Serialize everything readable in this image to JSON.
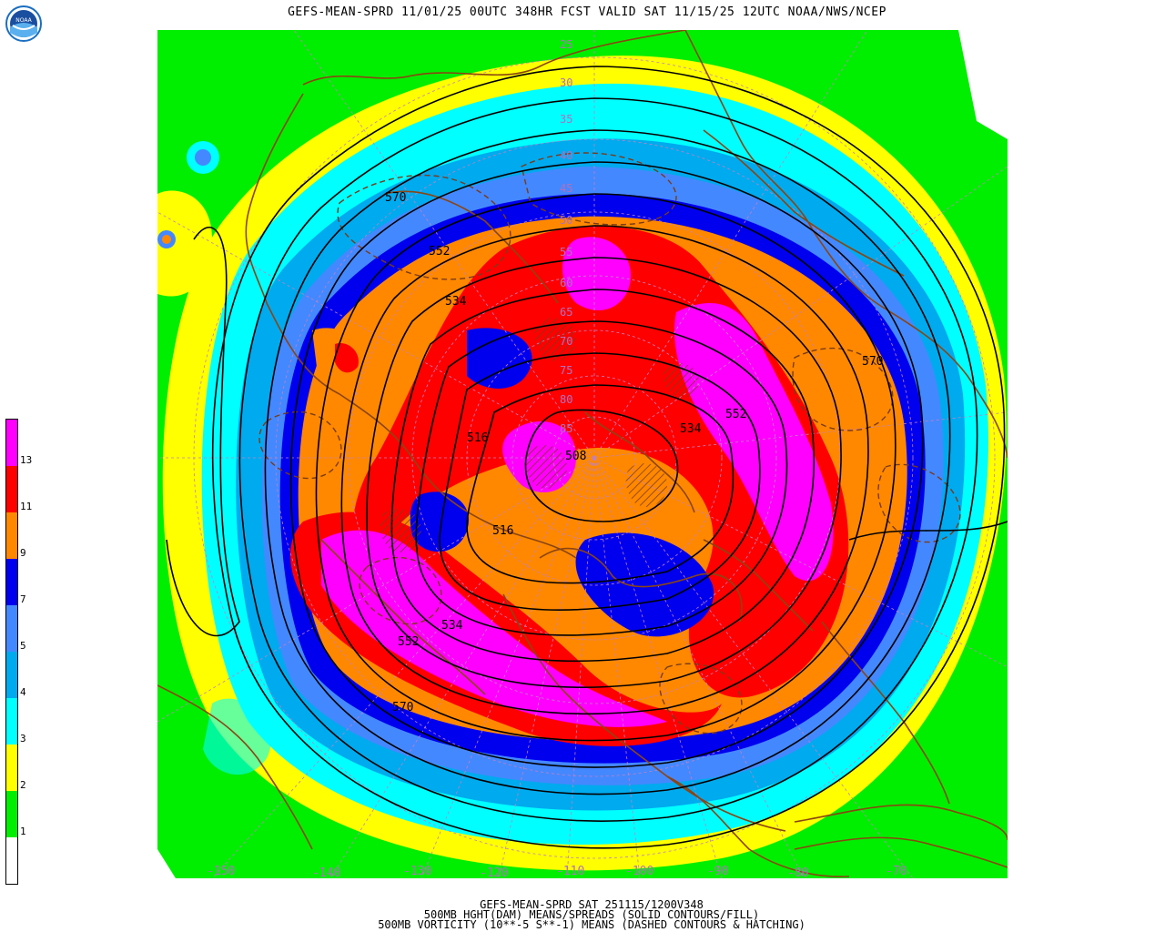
{
  "header": {
    "title": "GEFS-MEAN-SPRD 11/01/25 00UTC 348HR FCST VALID SAT 11/15/25 12UTC NOAA/NWS/NCEP"
  },
  "logo": {
    "icon": "noaa-logo-icon",
    "text": "NOAA"
  },
  "footer": {
    "line1": "GEFS-MEAN-SPRD SAT 251115/1200V348",
    "line2": "500MB HGHT(DAM) MEANS/SPREADS (SOLID CONTOURS/FILL)",
    "line3": "500MB VORTICITY (10**-5 S**-1) MEANS (DASHED CONTOURS & HATCHING)"
  },
  "colorbar": {
    "labels": [
      "1",
      "2",
      "3",
      "4",
      "5",
      "7",
      "9",
      "11",
      "13"
    ],
    "colors": [
      "#ffffff",
      "#00ee00",
      "#ffff00",
      "#00ffff",
      "#00aaee",
      "#4488ff",
      "#0000ee",
      "#ff8800",
      "#ff0000",
      "#ff00ff"
    ]
  },
  "map": {
    "contour_labels": [
      "570",
      "552",
      "534",
      "516",
      "534",
      "552",
      "570",
      "534",
      "552",
      "570",
      "516",
      "508"
    ],
    "latitude_labels": [
      "25",
      "30",
      "35",
      "40",
      "45",
      "50",
      "55",
      "60",
      "65",
      "70",
      "75",
      "80",
      "85"
    ],
    "longitude_labels": [
      "-150",
      "-140",
      "-130",
      "-120",
      "-110",
      "-100",
      "-90",
      "-80",
      "-70"
    ]
  }
}
